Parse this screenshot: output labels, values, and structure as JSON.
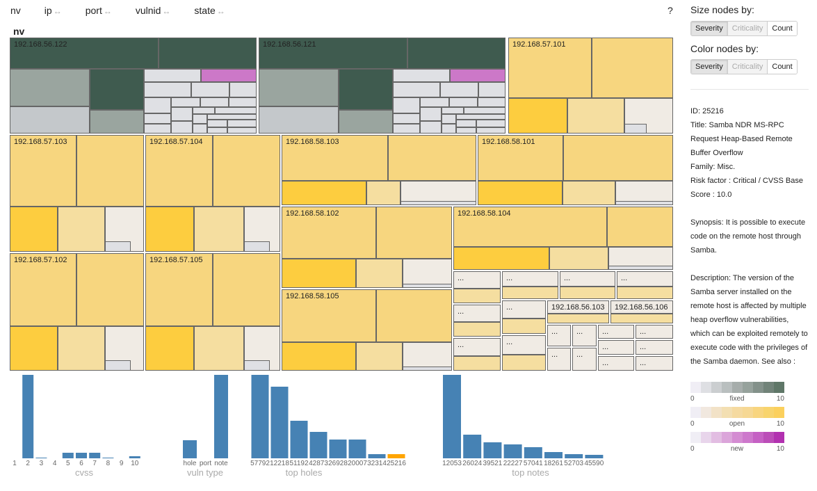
{
  "nav": {
    "items": [
      "nv",
      "ip",
      "port",
      "vulnid",
      "state"
    ],
    "arrow": "↔",
    "help": "?"
  },
  "breadcrumb": "nv",
  "treemap": {
    "hosts": {
      "h56_122": "192.168.56.122",
      "h56_121": "192.168.56.121",
      "h57_101": "192.168.57.101",
      "h57_103": "192.168.57.103",
      "h57_104": "192.168.57.104",
      "h58_103": "192.168.58.103",
      "h58_101": "192.168.58.101",
      "h58_102": "192.168.58.102",
      "h58_104": "192.168.58.104",
      "h57_102": "192.168.57.102",
      "h57_105": "192.168.57.105",
      "h58_105": "192.168.58.105",
      "h56_103": "192.168.56.103",
      "h56_106": "192.168.56.106"
    },
    "ellipsis": "..."
  },
  "controls": {
    "size_label": "Size nodes by:",
    "color_label": "Color nodes by:",
    "options": [
      "Severity",
      "Criticality",
      "Count"
    ],
    "size_selected": "Severity",
    "color_selected": "Severity"
  },
  "details": {
    "id": "ID: 25216",
    "title": "Title: Samba NDR MS-RPC Request Heap-Based Remote Buffer Overflow",
    "family": "Family: Misc.",
    "risk": "Risk factor : Critical / CVSS Base Score : 10.0",
    "synopsis": "Synopsis: It is possible to execute code on the remote host through Samba.",
    "description": "Description: The version of the Samba server installed on the remote host is affected by multiple heap overflow vulnerabilities, which can be exploited remotely to execute code with the privileges of the Samba daemon. See also :"
  },
  "legend": [
    {
      "label": "fixed",
      "min": "0",
      "max": "10",
      "colors": [
        "#f0eef5",
        "#dedfe3",
        "#cbced0",
        "#b9bfbf",
        "#a6adab",
        "#96a29c",
        "#83918a",
        "#718379",
        "#5f7768"
      ]
    },
    {
      "label": "open",
      "min": "0",
      "max": "10",
      "colors": [
        "#f0eef5",
        "#f1e8df",
        "#f2e2c7",
        "#f3dfb2",
        "#f5daa0",
        "#f6d894",
        "#f8d57f",
        "#f8d46d",
        "#fbd05d"
      ]
    },
    {
      "label": "new",
      "min": "0",
      "max": "10",
      "colors": [
        "#f0eef5",
        "#e8d5eb",
        "#e2bde2",
        "#dba5da",
        "#d48cd2",
        "#cd78cc",
        "#c561c4",
        "#bb4db8",
        "#b231b0"
      ]
    }
  ],
  "colors": {
    "bar": "#4682b4",
    "selected_bar": "#ffa500",
    "fixed_dark": "#3f5b4f",
    "open": "#f7d67f",
    "new": "#cc78c8"
  },
  "chart_data": [
    {
      "type": "bar",
      "xlabel": "cvss",
      "categories": [
        "1",
        "2",
        "3",
        "4",
        "5",
        "6",
        "7",
        "8",
        "9",
        "10"
      ],
      "values": [
        0,
        120,
        1,
        0,
        8,
        8,
        8,
        1,
        0,
        3
      ]
    },
    {
      "type": "bar",
      "xlabel": "vuln type",
      "categories": [
        "hole",
        "port",
        "note"
      ],
      "values": [
        26,
        0,
        120
      ]
    },
    {
      "type": "bar",
      "xlabel": "top holes",
      "categories": [
        "57792",
        "12218",
        "51192",
        "42873",
        "26928",
        "20007",
        "32314",
        "25216"
      ],
      "values": [
        120,
        103,
        54,
        38,
        27,
        27,
        6,
        6
      ],
      "selected": "25216"
    },
    {
      "type": "bar",
      "xlabel": "top notes",
      "categories": [
        "12053",
        "26024",
        "39521",
        "22227",
        "57041",
        "18261",
        "52703",
        "45590"
      ],
      "values": [
        120,
        34,
        23,
        20,
        16,
        9,
        6,
        5
      ]
    }
  ]
}
